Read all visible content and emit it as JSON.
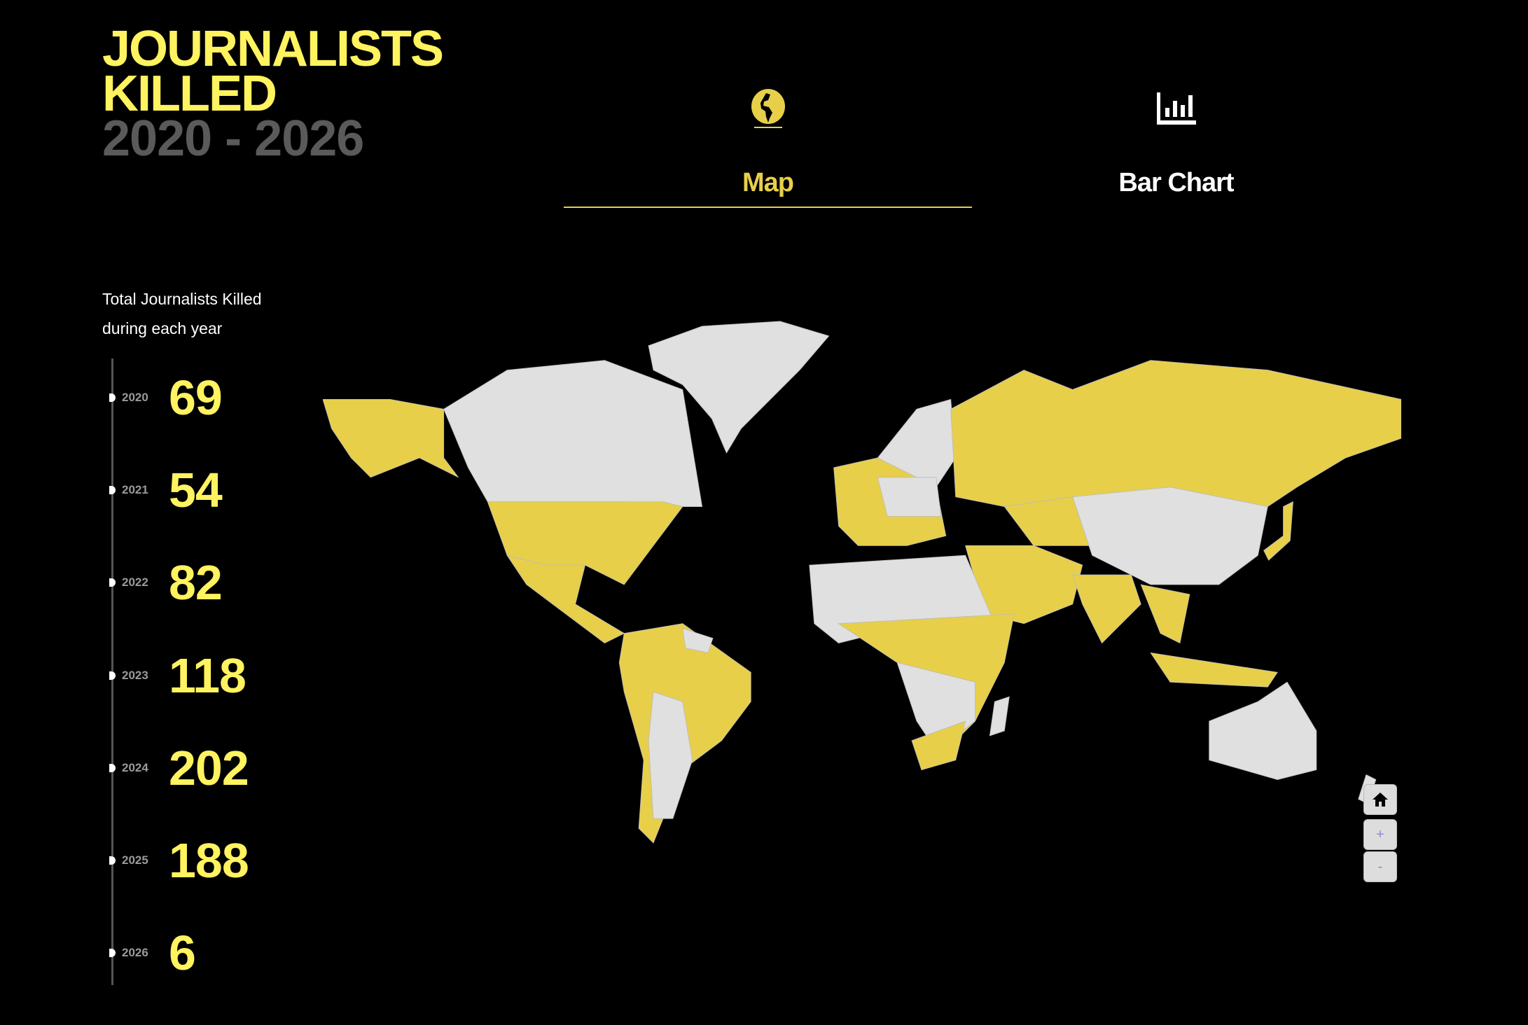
{
  "header": {
    "title_line1": "JOURNALISTS",
    "title_line2": "KILLED",
    "range": "2020 - 2026"
  },
  "tabs": [
    {
      "label": "Map",
      "icon": "globe-icon",
      "active": true
    },
    {
      "label": "Bar Chart",
      "icon": "bar-chart-icon",
      "active": false
    }
  ],
  "summary": {
    "line1": "Total Journalists Killed",
    "line2": "during each year",
    "years": [
      {
        "year": "2020",
        "count": "69"
      },
      {
        "year": "2021",
        "count": "54"
      },
      {
        "year": "2022",
        "count": "82"
      },
      {
        "year": "2023",
        "count": "118"
      },
      {
        "year": "2024",
        "count": "202"
      },
      {
        "year": "2025",
        "count": "188"
      },
      {
        "year": "2026",
        "count": "6"
      }
    ]
  },
  "map": {
    "colors": {
      "affected": "#e8cf4a",
      "unaffected": "#e0e0e0",
      "accent": "#fff35f"
    },
    "controls": {
      "home": "home-icon",
      "zoom_in": "+",
      "zoom_out": "-"
    }
  }
}
